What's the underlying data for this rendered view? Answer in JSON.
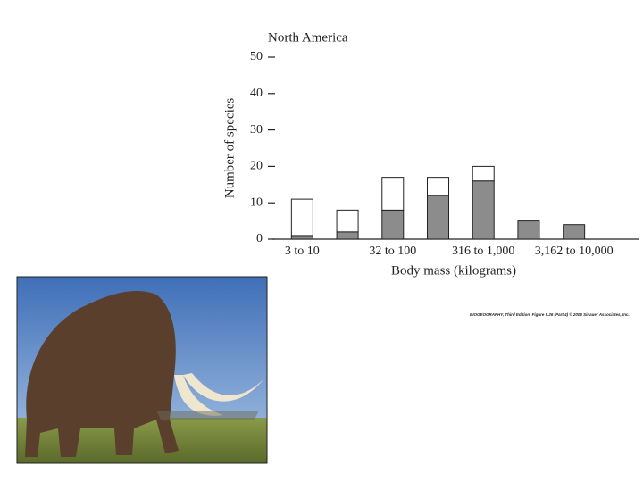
{
  "chart_data": {
    "type": "stacked_bar",
    "title": "North America",
    "x_label": "Body mass (kilograms)",
    "y_label": "Number of species",
    "categories": [
      "3 to 10",
      null,
      "32 to 100",
      null,
      "316 to 1,000",
      null,
      "3,162 to 10,000"
    ],
    "series": [
      {
        "color": "#8c8c8c",
        "values": [
          1,
          2,
          8,
          12,
          16,
          5,
          4
        ]
      },
      {
        "color": "#ffffff",
        "values": [
          10,
          6,
          9,
          5,
          4,
          0,
          0
        ]
      }
    ],
    "ylim": [
      0,
      50
    ],
    "yticks": [
      0,
      10,
      20,
      30,
      40,
      50
    ],
    "caption": "BIOGEOGRAPHY, Third Edition, Figure 9.26 (Part 4) © 2006 Sinauer Associates, Inc."
  }
}
